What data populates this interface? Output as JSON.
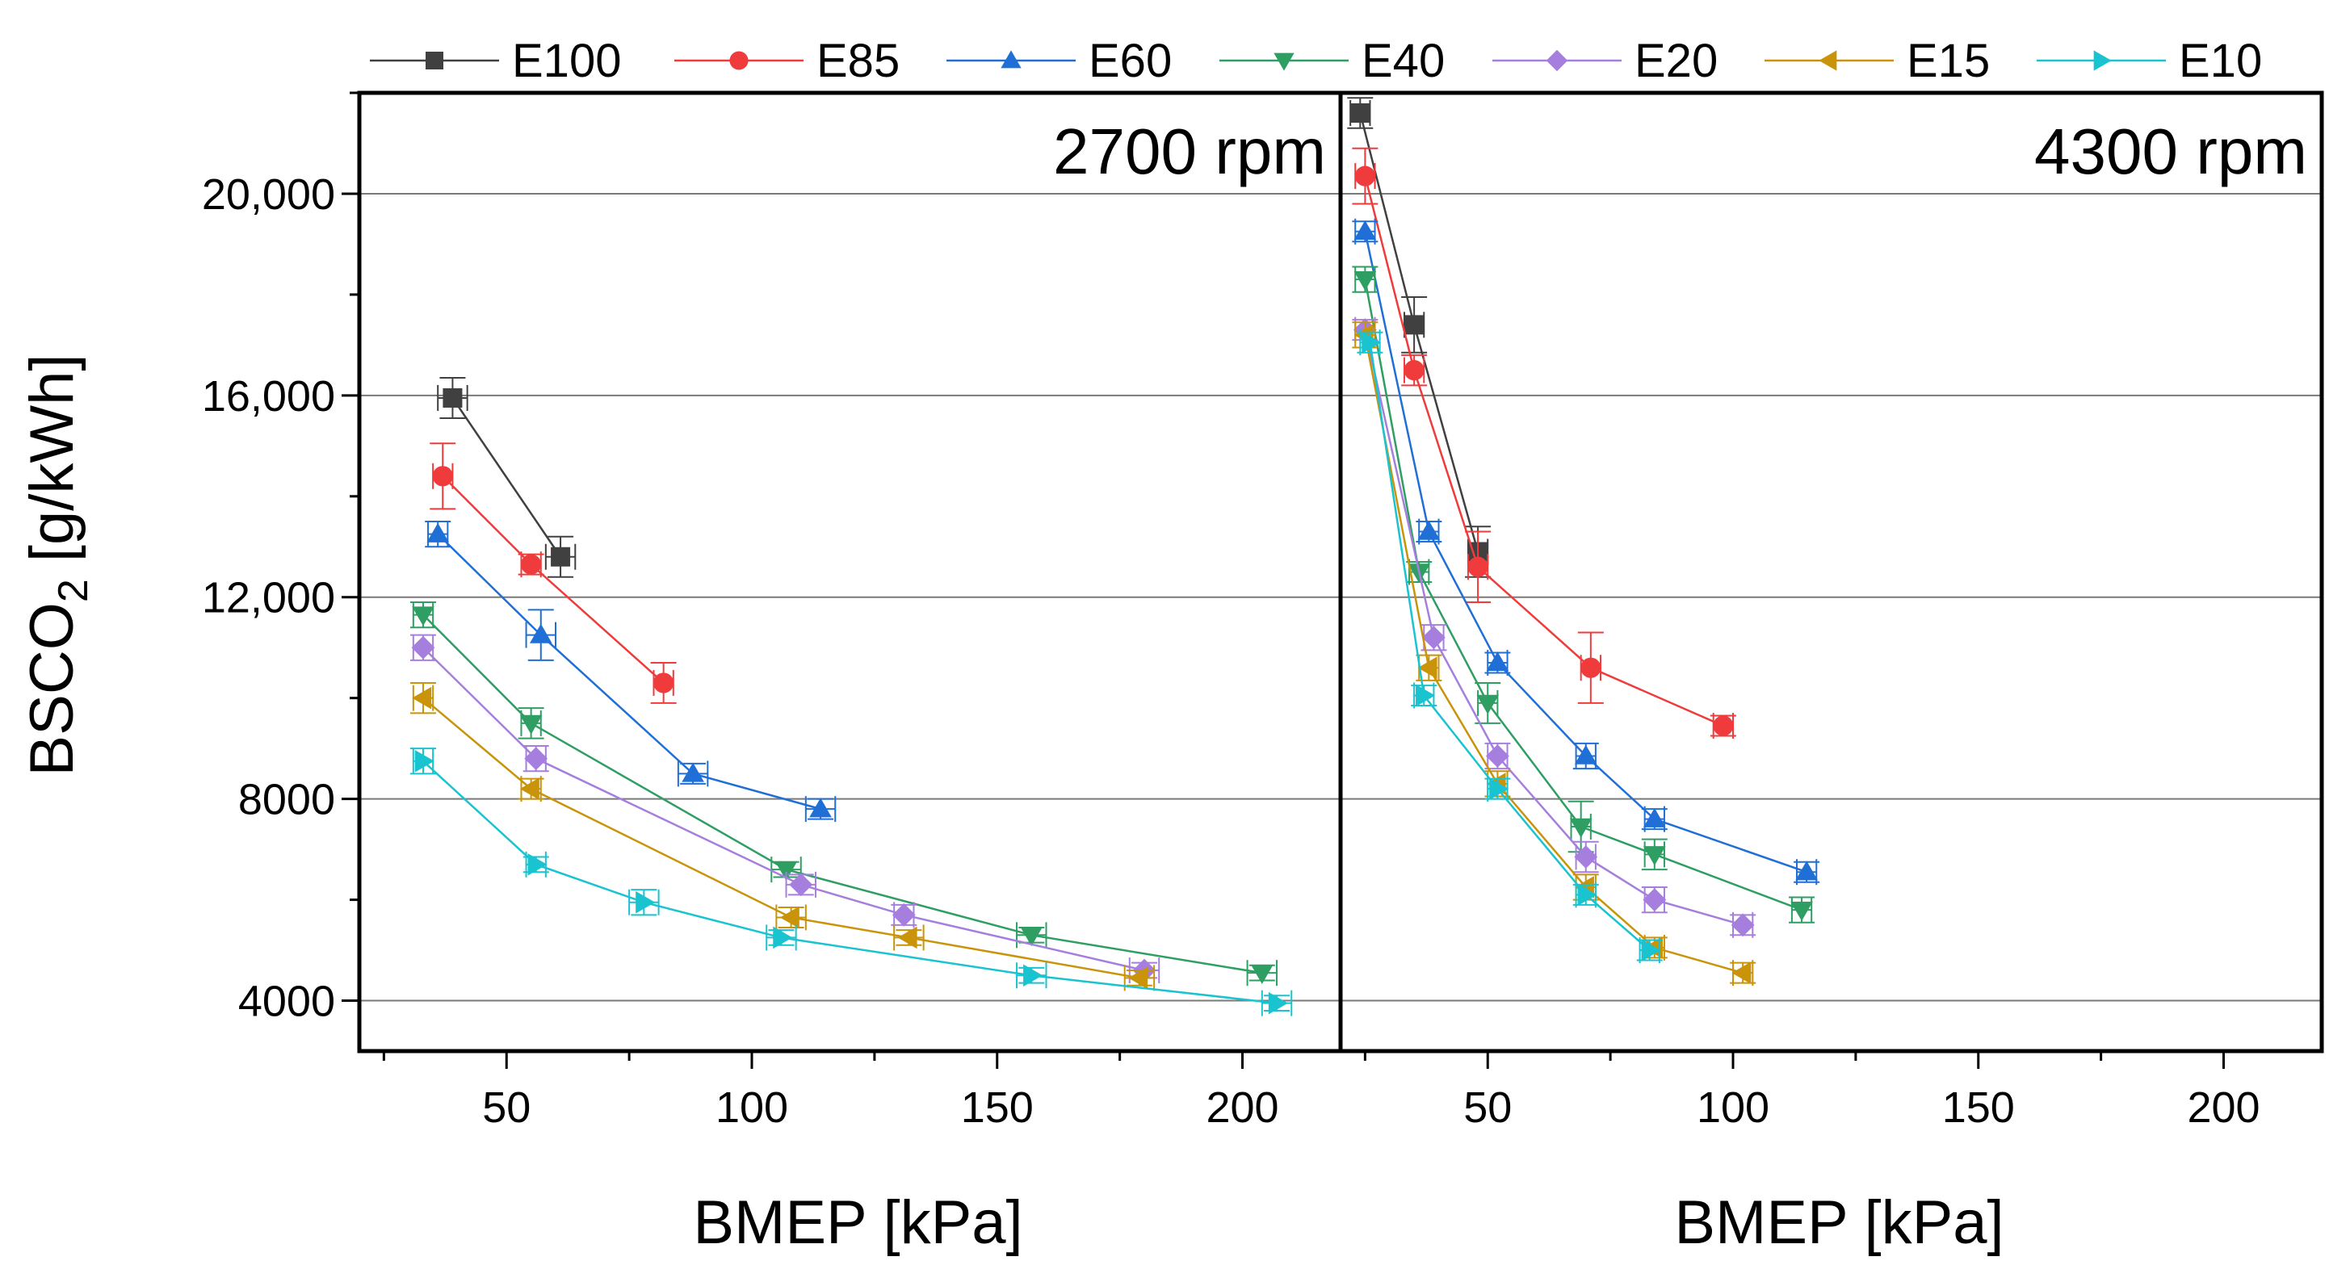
{
  "chart_data": {
    "type": "line",
    "ylabel": "BSCO",
    "ylabel_subscript": "2",
    "ylabel_unit": " [g/kWh]",
    "ylim": [
      3000,
      22000
    ],
    "yticks": [
      4000,
      8000,
      12000,
      16000,
      20000
    ],
    "ytick_labels": [
      "4000",
      "8000",
      "12,000",
      "16,000",
      "20,000"
    ],
    "grid": true,
    "legend_position": "top",
    "series": [
      {
        "name": "E100",
        "color": "#404040",
        "marker": "square"
      },
      {
        "name": "E85",
        "color": "#ef3b3b",
        "marker": "circle"
      },
      {
        "name": "E60",
        "color": "#1f6fd6",
        "marker": "triangle-up"
      },
      {
        "name": "E40",
        "color": "#2e9e63",
        "marker": "triangle-down"
      },
      {
        "name": "E20",
        "color": "#a67fde",
        "marker": "diamond"
      },
      {
        "name": "E15",
        "color": "#c9940a",
        "marker": "triangle-left"
      },
      {
        "name": "E10",
        "color": "#19c3cf",
        "marker": "triangle-right"
      }
    ],
    "panels": [
      {
        "title": "2700 rpm",
        "xlabel": "BMEP [kPa]",
        "xlim": [
          20,
          220
        ],
        "xticks": [
          50,
          100,
          150,
          200
        ],
        "data": {
          "E100": [
            [
              39,
              15950
            ],
            [
              61,
              12800
            ]
          ],
          "E85": [
            [
              37,
              14400
            ],
            [
              55,
              12650
            ],
            [
              82,
              10300
            ]
          ],
          "E60": [
            [
              36,
              13250
            ],
            [
              57,
              11250
            ],
            [
              88,
              8500
            ],
            [
              114,
              7800
            ]
          ],
          "E40": [
            [
              33,
              11650
            ],
            [
              55,
              9500
            ],
            [
              107,
              6600
            ],
            [
              157,
              5300
            ],
            [
              204,
              4550
            ]
          ],
          "E20": [
            [
              33,
              11000
            ],
            [
              56,
              8800
            ],
            [
              110,
              6300
            ],
            [
              131,
              5700
            ],
            [
              180,
              4600
            ]
          ],
          "E15": [
            [
              33,
              10000
            ],
            [
              55,
              8200
            ],
            [
              108,
              5650
            ],
            [
              132,
              5250
            ],
            [
              179,
              4450
            ]
          ],
          "E10": [
            [
              33,
              8750
            ],
            [
              56,
              6700
            ],
            [
              78,
              5950
            ],
            [
              106,
              5250
            ],
            [
              157,
              4500
            ],
            [
              207,
              3950
            ]
          ]
        },
        "xerr": {
          "E100": [
            3,
            3
          ],
          "E85": [
            2,
            2,
            2
          ],
          "E60": [
            2,
            3,
            3,
            3
          ],
          "E40": [
            2,
            2,
            3,
            3,
            3
          ],
          "E20": [
            2,
            2,
            3,
            2,
            3
          ],
          "E15": [
            2,
            2,
            3,
            3,
            3
          ],
          "E10": [
            2,
            2,
            3,
            3,
            3,
            3
          ]
        },
        "yerr": {
          "E100": [
            400,
            400
          ],
          "E85": [
            650,
            200,
            400
          ],
          "E60": [
            250,
            500,
            200,
            200
          ],
          "E40": [
            250,
            300,
            150,
            150,
            150
          ],
          "E20": [
            250,
            250,
            200,
            200,
            150
          ],
          "E15": [
            300,
            200,
            200,
            150,
            150
          ],
          "E10": [
            250,
            150,
            250,
            150,
            150,
            150
          ]
        }
      },
      {
        "title": "4300 rpm",
        "xlabel": "BMEP [kPa]",
        "xlim": [
          20,
          220
        ],
        "xticks": [
          50,
          100,
          150,
          200
        ],
        "data": {
          "E100": [
            [
              24,
              21600
            ],
            [
              35,
              17400
            ],
            [
              48,
              12900
            ]
          ],
          "E85": [
            [
              25,
              20350
            ],
            [
              35,
              16500
            ],
            [
              48,
              12600
            ],
            [
              71,
              10600
            ],
            [
              98,
              9450
            ]
          ],
          "E60": [
            [
              25,
              19250
            ],
            [
              38,
              13300
            ],
            [
              52,
              10700
            ],
            [
              70,
              8850
            ],
            [
              84,
              7600
            ],
            [
              115,
              6550
            ]
          ],
          "E40": [
            [
              25,
              18300
            ],
            [
              36,
              12500
            ],
            [
              50,
              9900
            ],
            [
              69,
              7450
            ],
            [
              84,
              6900
            ],
            [
              114,
              5800
            ]
          ],
          "E20": [
            [
              25,
              17300
            ],
            [
              39,
              11200
            ],
            [
              52,
              8850
            ],
            [
              70,
              6850
            ],
            [
              84,
              6000
            ],
            [
              102,
              5500
            ]
          ],
          "E15": [
            [
              25,
              17200
            ],
            [
              38,
              10600
            ],
            [
              52,
              8300
            ],
            [
              70,
              6250
            ],
            [
              84,
              5050
            ],
            [
              102,
              4550
            ]
          ],
          "E10": [
            [
              26,
              17050
            ],
            [
              37,
              10050
            ],
            [
              52,
              8200
            ],
            [
              70,
              6100
            ],
            [
              83,
              5000
            ]
          ]
        },
        "xerr": {
          "E100": [
            2,
            2,
            2
          ],
          "E85": [
            2,
            2,
            2,
            2,
            2
          ],
          "E60": [
            2,
            2,
            2,
            2,
            2,
            2
          ],
          "E40": [
            2,
            2,
            2,
            2,
            2,
            2
          ],
          "E20": [
            2,
            2,
            2,
            2,
            2,
            2
          ],
          "E15": [
            2,
            2,
            2,
            2,
            2,
            2
          ],
          "E10": [
            2,
            2,
            2,
            2,
            2
          ]
        },
        "yerr": {
          "E100": [
            300,
            550,
            500
          ],
          "E85": [
            550,
            300,
            700,
            700,
            200
          ],
          "E60": [
            200,
            200,
            200,
            250,
            200,
            200
          ],
          "E40": [
            250,
            200,
            400,
            500,
            300,
            250
          ],
          "E20": [
            200,
            250,
            250,
            300,
            250,
            200
          ],
          "E15": [
            250,
            250,
            250,
            250,
            200,
            200
          ],
          "E10": [
            200,
            200,
            200,
            200,
            200
          ]
        }
      }
    ]
  }
}
